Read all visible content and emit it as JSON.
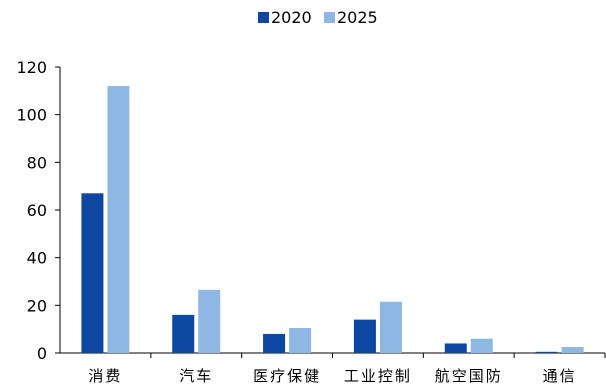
{
  "chart_data": {
    "type": "bar",
    "categories": [
      "消费",
      "汽车",
      "医疗保健",
      "工业控制",
      "航空国防",
      "通信"
    ],
    "series": [
      {
        "name": "2020",
        "color": "#0E47A1",
        "values": [
          67,
          16,
          8,
          14,
          4,
          0.5
        ]
      },
      {
        "name": "2025",
        "color": "#8EB8E3",
        "values": [
          112,
          26.5,
          10.5,
          21.5,
          6,
          2.5
        ]
      }
    ],
    "ylim": [
      0,
      120
    ],
    "yticks": [
      0,
      20,
      40,
      60,
      80,
      100,
      120
    ],
    "grid": false,
    "legend_position": "top-center"
  }
}
